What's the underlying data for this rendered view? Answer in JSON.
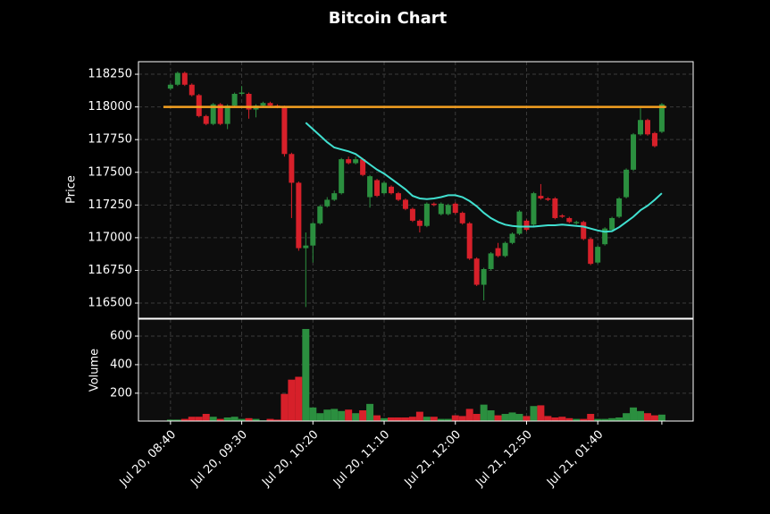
{
  "chart_data": [
    {
      "type": "candlestick",
      "title": "Bitcoin Chart",
      "ylabel": "Price",
      "open": [
        118140,
        118170,
        118260,
        118170,
        118090,
        117930,
        117870,
        118020,
        117870,
        118010,
        118100,
        118100,
        117980,
        118010,
        118030,
        118010,
        118000,
        117640,
        117420,
        116920,
        116940,
        117110,
        117240,
        117290,
        117340,
        117600,
        117570,
        117600,
        117310,
        117440,
        117340,
        117390,
        117340,
        117290,
        117220,
        117130,
        117090,
        117260,
        117180,
        117180,
        117260,
        117190,
        117110,
        116840,
        116640,
        116760,
        116920,
        116860,
        116960,
        117030,
        117130,
        117100,
        117320,
        117300,
        117300,
        117170,
        117150,
        117110,
        117120,
        116990,
        116810,
        116950,
        117060,
        117160,
        117310,
        117520,
        117790,
        117900,
        117800,
        117810
      ],
      "high": [
        118180,
        118270,
        118270,
        118180,
        118100,
        117940,
        118030,
        118030,
        118020,
        118110,
        118160,
        118110,
        118020,
        118040,
        118040,
        118020,
        118010,
        117650,
        117430,
        117040,
        117120,
        117250,
        117310,
        117360,
        117610,
        117620,
        117620,
        117610,
        117480,
        117450,
        117430,
        117400,
        117350,
        117300,
        117230,
        117140,
        117270,
        117270,
        117270,
        117260,
        117270,
        117200,
        117120,
        116850,
        116770,
        116890,
        116960,
        116970,
        117040,
        117210,
        117140,
        117350,
        117410,
        117310,
        117310,
        117180,
        117160,
        117130,
        117130,
        117000,
        116940,
        117080,
        117160,
        117310,
        117530,
        117800,
        117990,
        117910,
        117810,
        118030
      ],
      "low": [
        118130,
        118160,
        118160,
        118080,
        117920,
        117860,
        117860,
        117860,
        117830,
        118000,
        118090,
        117910,
        117920,
        118000,
        118000,
        117990,
        117620,
        117150,
        116900,
        116470,
        116810,
        117100,
        117230,
        117280,
        117330,
        117560,
        117560,
        117470,
        117230,
        117310,
        117330,
        117330,
        117280,
        117210,
        117120,
        117040,
        117080,
        117240,
        117170,
        117170,
        117180,
        117100,
        116830,
        116630,
        116520,
        116750,
        116850,
        116850,
        116950,
        117020,
        117050,
        117090,
        117290,
        117280,
        117140,
        117150,
        117110,
        117100,
        116980,
        116790,
        116800,
        116940,
        117050,
        117150,
        117300,
        117510,
        117780,
        117780,
        117690,
        117800
      ],
      "close": [
        118170,
        118260,
        118170,
        118090,
        117930,
        117870,
        118020,
        117870,
        118010,
        118100,
        118110,
        117980,
        118010,
        118030,
        118010,
        118000,
        117640,
        117420,
        116920,
        116940,
        117110,
        117240,
        117290,
        117340,
        117600,
        117570,
        117600,
        117480,
        117470,
        117320,
        117420,
        117340,
        117290,
        117220,
        117130,
        117090,
        117260,
        117250,
        117260,
        117250,
        117190,
        117110,
        116840,
        116640,
        116760,
        116880,
        116860,
        116960,
        117030,
        117200,
        117060,
        117340,
        117300,
        117290,
        117150,
        117160,
        117120,
        117120,
        116990,
        116800,
        116930,
        117070,
        117150,
        117300,
        117520,
        117790,
        117900,
        117790,
        117700,
        118020
      ],
      "up_color": "#2b8f3f",
      "down_color": "#d7202a",
      "lines": [
        {
          "color": "#40e0d0",
          "values": [
            null,
            null,
            null,
            null,
            null,
            null,
            null,
            null,
            null,
            null,
            null,
            null,
            null,
            null,
            null,
            null,
            null,
            null,
            null,
            117880,
            117830,
            117780,
            117730,
            117690,
            117675,
            117660,
            117640,
            117600,
            117560,
            117520,
            117490,
            117450,
            117410,
            117370,
            117320,
            117300,
            117295,
            117300,
            117310,
            117325,
            117325,
            117310,
            117280,
            117240,
            117190,
            117150,
            117120,
            117100,
            117090,
            117085,
            117085,
            117085,
            117090,
            117095,
            117095,
            117100,
            117095,
            117090,
            117085,
            117070,
            117055,
            117045,
            117050,
            117080,
            117120,
            117160,
            117210,
            117245,
            117290,
            117340
          ]
        }
      ],
      "hline": {
        "value": 118000,
        "color": "#f5a020"
      },
      "xlim": [
        -4.5,
        73.4
      ],
      "ylim": [
        116384,
        118346
      ],
      "yticks": [
        116500,
        116750,
        117000,
        117250,
        117500,
        117750,
        118000,
        118250
      ],
      "grid": true
    },
    {
      "type": "bar",
      "ylabel": "Volume",
      "values": [
        15,
        15,
        20,
        35,
        35,
        55,
        35,
        20,
        30,
        35,
        20,
        25,
        20,
        10,
        20,
        15,
        195,
        295,
        315,
        650,
        100,
        60,
        85,
        90,
        75,
        85,
        60,
        80,
        125,
        45,
        25,
        30,
        30,
        30,
        35,
        70,
        35,
        35,
        20,
        20,
        45,
        40,
        90,
        55,
        120,
        80,
        45,
        55,
        65,
        55,
        40,
        110,
        115,
        40,
        30,
        35,
        25,
        20,
        20,
        55,
        20,
        20,
        25,
        30,
        60,
        100,
        75,
        60,
        45,
        50
      ],
      "xlim": [
        -4.5,
        73.4
      ],
      "ylim": [
        5,
        719
      ],
      "yticks": [
        200,
        400,
        600
      ],
      "grid": true,
      "xticks": [
        {
          "value": 0,
          "label": "Jul 20, 08:40"
        },
        {
          "value": 10,
          "label": "Jul 20, 09:30"
        },
        {
          "value": 20,
          "label": "Jul 20, 10:20"
        },
        {
          "value": 30,
          "label": "Jul 20, 11:10"
        },
        {
          "value": 40,
          "label": "Jul 21, 12:00"
        },
        {
          "value": 50,
          "label": "Jul 21, 12:50"
        },
        {
          "value": 60,
          "label": "Jul 21, 01:40"
        }
      ]
    }
  ]
}
